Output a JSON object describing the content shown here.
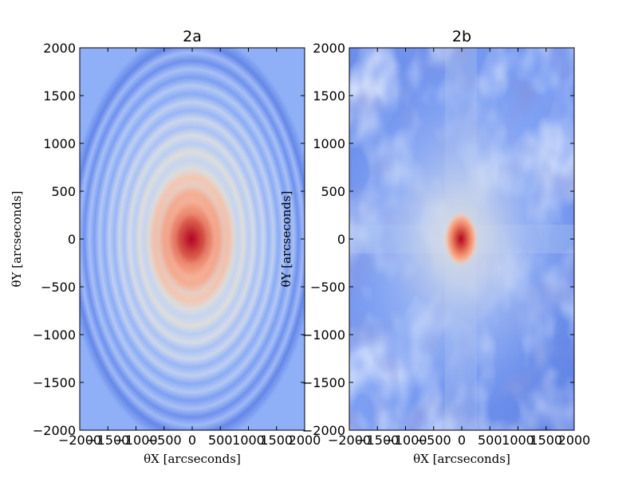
{
  "chart_data": [
    {
      "type": "heatmap",
      "title": "2a",
      "xlabel": "θX  [arcseconds]",
      "ylabel": "θY  [arcseconds]",
      "xlim": [
        -2000,
        2000
      ],
      "ylim": [
        -2000,
        2000
      ],
      "xticks": [
        "−2000",
        "−1500",
        "−1000",
        "−500",
        "0",
        "500",
        "1000",
        "1500",
        "2000"
      ],
      "yticks": [
        "2000",
        "1500",
        "1000",
        "500",
        "0",
        "−500",
        "−1000",
        "−1500",
        "−2000"
      ],
      "pattern": "concentric-elliptical-rings",
      "peak": [
        0,
        0
      ],
      "colormap": [
        "#3b4cc0",
        "#7396f5",
        "#b0cbfc",
        "#dddddd",
        "#f6b89c",
        "#e8765c",
        "#b40426"
      ]
    },
    {
      "type": "heatmap",
      "title": "2b",
      "xlabel": "θX  [arcseconds]",
      "ylabel": "θY  [arcseconds]",
      "xlim": [
        -2000,
        2000
      ],
      "ylim": [
        -2000,
        2000
      ],
      "xticks": [
        "−2000",
        "−1500",
        "−1000",
        "−500",
        "0",
        "500",
        "1000",
        "1500",
        "2000"
      ],
      "yticks": [
        "2000",
        "1500",
        "1000",
        "500",
        "0",
        "−500",
        "−1000",
        "−1500",
        "−2000"
      ],
      "pattern": "speckle-with-central-peak",
      "peak": [
        0,
        0
      ],
      "colormap": [
        "#3b4cc0",
        "#7396f5",
        "#b0cbfc",
        "#dddddd",
        "#f6b89c",
        "#e8765c",
        "#b40426"
      ]
    }
  ]
}
